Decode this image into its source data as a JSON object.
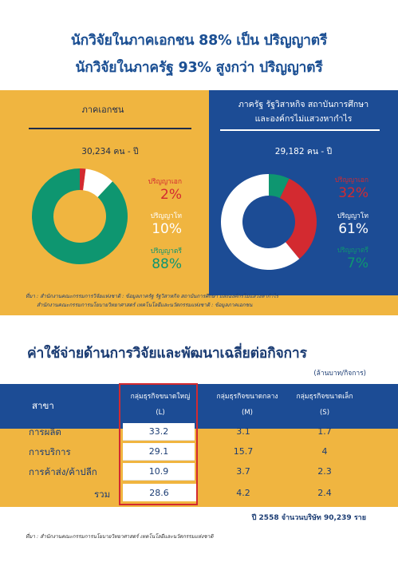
{
  "headline": {
    "line1": "นักวิจัยในภาคเอกชน 88% เป็น ปริญญาตรี",
    "line2": "นักวิจัยในภาครัฐ 93% สูงกว่า ปริญญาตรี"
  },
  "private_sector": {
    "title": "ภาคเอกชน",
    "count": "30,234 คน - ปี",
    "slices": [
      {
        "label": "ปริญญาเอก",
        "pct": "2%",
        "value": 2,
        "color": "#d32a30"
      },
      {
        "label": "ปริญญาโท",
        "pct": "10%",
        "value": 10,
        "color": "#ffffff"
      },
      {
        "label": "ปริญญาตรี",
        "pct": "88%",
        "value": 88,
        "color": "#0e9670"
      }
    ]
  },
  "public_sector": {
    "title_line1": "ภาครัฐ รัฐวิสาหกิจ สถาบันการศึกษา",
    "title_line2": "และองค์กรไม่แสวงหากำไร",
    "count": "29,182 คน - ปี",
    "slices": [
      {
        "label": "ปริญญาเอก",
        "pct": "32%",
        "value": 32,
        "color": "#d32a30"
      },
      {
        "label": "ปริญญาโท",
        "pct": "61%",
        "value": 61,
        "color": "#ffffff"
      },
      {
        "label": "ปริญญาตรี",
        "pct": "7%",
        "value": 7,
        "color": "#0e9670"
      }
    ]
  },
  "source1": {
    "line1": "ที่มา : สำนักงานคณะกรรมการวิจัยแห่งชาติ : ข้อมูลภาครัฐ รัฐวิสาหกิจ สถาบันการศึกษา และองค์กรไม่แสวงหากำไร",
    "line2": "สำนักงานคณะกรรมการนโยบายวิทยาศาสตร์ เทคโนโลยีและนวัตกรรมแห่งชาติ : ข้อมูลภาคเอกชน"
  },
  "expense": {
    "title": "ค่าใช้จ่ายด้านการวิจัยและพัฒนาเฉลี่ยต่อกิจการ",
    "unit": "(ล้านบาท/กิจการ)",
    "col_main": "สาขา",
    "columns": [
      {
        "name": "กลุ่มธุรกิจขนาดใหญ่",
        "code": "(L)"
      },
      {
        "name": "กลุ่มธุรกิจขนาดกลาง",
        "code": "(M)"
      },
      {
        "name": "กลุ่มธุรกิจขนาดเล็ก",
        "code": "(S)"
      }
    ],
    "rows": [
      {
        "label": "การผลิต",
        "l": "33.2",
        "m": "3.1",
        "s": "1.7"
      },
      {
        "label": "การบริการ",
        "l": "29.1",
        "m": "15.7",
        "s": "4"
      },
      {
        "label": "การค้าส่ง/ค้าปลีก",
        "l": "10.9",
        "m": "3.7",
        "s": "2.3"
      }
    ],
    "total": {
      "label": "รวม",
      "l": "28.6",
      "m": "4.2",
      "s": "2.4"
    },
    "footnote": "ปี 2558 จำนวนบริษัท 90,239 ราย",
    "source": "ที่มา : สำนักงานคณะกรรมการนโยบายวิทยาศาสตร์ เทคโนโลยีและนวัตกรรมแห่งชาติ"
  }
}
